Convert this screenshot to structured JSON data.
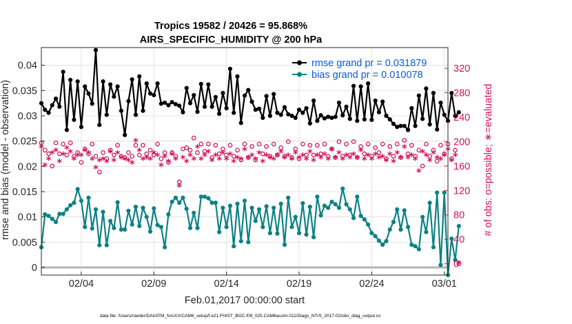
{
  "chart_data": {
    "type": "line",
    "title": "Tropics 19582 / 20426 = 95.868%",
    "subtitle": "AIRS_SPECIFIC_HUMIDITY @ 200 hPa",
    "xlabel": "Feb.01,2017 00:00:00 start",
    "ylabel_left": "rmse and bias (model - observation)",
    "ylabel_right": "# of obs: o=possible; ∗=evaluated",
    "x_ticks": [
      "02/04",
      "02/09",
      "02/14",
      "02/19",
      "02/24",
      "03/01"
    ],
    "x_tick_days": [
      3,
      8,
      13,
      18,
      23,
      28
    ],
    "xlim": [
      0.25,
      28.25
    ],
    "ylim_left": [
      -0.0015,
      0.0435
    ],
    "y_ticks_left": [
      "0",
      "0.005",
      "0.01",
      "0.015",
      "0.02",
      "0.025",
      "0.03",
      "0.035",
      "0.04"
    ],
    "y_tick_values_left": [
      0,
      0.005,
      0.01,
      0.015,
      0.02,
      0.025,
      0.03,
      0.035,
      0.04
    ],
    "ylim_right": [
      -18.5,
      354
    ],
    "y_ticks_right": [
      "0",
      "40",
      "80",
      "120",
      "160",
      "200",
      "240",
      "280",
      "320"
    ],
    "y_tick_values_right": [
      0,
      40,
      80,
      120,
      160,
      200,
      240,
      280,
      320
    ],
    "grid": true,
    "legend_position": "top-right",
    "x_start_day": 0.25,
    "x_step_days": 0.25,
    "series": [
      {
        "name": "rmse grand pr = 0.031879",
        "axis": "left",
        "color": "#000000",
        "marker": "dot",
        "values": [
          0.0325,
          0.0312,
          0.0306,
          0.0321,
          0.0334,
          0.0318,
          0.0387,
          0.0272,
          0.0371,
          0.0292,
          0.0368,
          0.0278,
          0.0358,
          0.0344,
          0.0324,
          0.043,
          0.0282,
          0.0368,
          0.0302,
          0.0362,
          0.0338,
          0.0358,
          0.031,
          0.0262,
          0.0329,
          0.0372,
          0.0302,
          0.0378,
          0.031,
          0.0364,
          0.0344,
          0.0341,
          0.0364,
          0.0324,
          0.0326,
          0.0321,
          0.0327,
          0.0323,
          0.032,
          0.0307,
          0.0355,
          0.0325,
          0.0341,
          0.0308,
          0.0363,
          0.0318,
          0.0362,
          0.0318,
          0.0337,
          0.0304,
          0.0345,
          0.0315,
          0.0393,
          0.0306,
          0.0378,
          0.0286,
          0.034,
          0.0351,
          0.0328,
          0.0312,
          0.0314,
          0.0296,
          0.0339,
          0.03,
          0.0343,
          0.0306,
          0.0302,
          0.0317,
          0.0303,
          0.03,
          0.0296,
          0.0312,
          0.0306,
          0.0315,
          0.0285,
          0.033,
          0.029,
          0.0301,
          0.0295,
          0.0298,
          0.0296,
          0.0298,
          0.0326,
          0.0301,
          0.0318,
          0.0294,
          0.0359,
          0.029,
          0.0358,
          0.0293,
          0.0364,
          0.0292,
          0.033,
          0.0307,
          0.0328,
          0.03,
          0.0293,
          0.0284,
          0.0278,
          0.028,
          0.028,
          0.0272,
          0.0315,
          0.028,
          0.034,
          0.0294,
          0.0354,
          0.0283,
          0.0345,
          0.0273,
          0.0326,
          0.0302,
          0.029,
          0.0345,
          0.03,
          0.0307
        ]
      },
      {
        "name": "bias grand pr = 0.010078",
        "axis": "left",
        "color": "#0b8284",
        "marker": "dot",
        "values": [
          0.004,
          0.0105,
          0.0102,
          0.0096,
          0.009,
          0.0106,
          0.0106,
          0.0115,
          0.0123,
          0.0128,
          0.0155,
          0.0132,
          0.008,
          0.0138,
          0.0077,
          0.0115,
          0.0044,
          0.011,
          0.0044,
          0.0092,
          0.0078,
          0.0129,
          0.0075,
          0.0075,
          0.0112,
          0.0085,
          0.012,
          0.0082,
          0.0118,
          0.01,
          0.0071,
          0.0117,
          0.0084,
          0.008,
          0.004,
          0.0105,
          0.013,
          0.0138,
          0.0128,
          0.0138,
          0.0116,
          0.0078,
          0.0108,
          0.0078,
          0.014,
          0.014,
          0.0137,
          0.0128,
          0.0128,
          0.007,
          0.0118,
          0.008,
          0.0122,
          0.0042,
          0.0126,
          0.0052,
          0.0132,
          0.005,
          0.0118,
          0.0092,
          0.0115,
          0.008,
          0.0121,
          0.0068,
          0.0118,
          0.0067,
          0.0126,
          0.0045,
          0.0138,
          0.008,
          0.01,
          0.0068,
          0.0127,
          0.0065,
          0.012,
          0.006,
          0.014,
          0.0103,
          0.0122,
          0.0118,
          0.013,
          0.0125,
          0.0118,
          0.0156,
          0.0125,
          0.0115,
          0.0098,
          0.014,
          0.0102,
          0.0095,
          0.0085,
          0.0068,
          0.0062,
          0.0053,
          0.0045,
          0.0052,
          0.0075,
          0.009,
          0.0115,
          0.0075,
          0.0113,
          0.008,
          0.0045,
          0.0042,
          0.0036,
          0.01,
          0.007,
          0.0128,
          0.004,
          0.0148,
          0.0005,
          0.0148,
          -0.0015,
          0.0057,
          0.0015,
          0.0082
        ]
      }
    ],
    "obs_possible": {
      "name": "# obs possible (o)",
      "axis": "right",
      "color": "#d0135c",
      "values": [
        198,
        186,
        180,
        160,
        198,
        180,
        196,
        178,
        198,
        176,
        182,
        166,
        188,
        180,
        196,
        176,
        150,
        182,
        172,
        186,
        178,
        194,
        176,
        174,
        182,
        176,
        194,
        178,
        194,
        180,
        186,
        178,
        196,
        172,
        182,
        166,
        182,
        176,
        134,
        188,
        190,
        186,
        206,
        182,
        196,
        184,
        196,
        174,
        194,
        180,
        188,
        178,
        194,
        176,
        186,
        170,
        196,
        174,
        192,
        170,
        196,
        180,
        192,
        176,
        196,
        178,
        190,
        176,
        200,
        174,
        188,
        172,
        196,
        178,
        194,
        178,
        194,
        180,
        196,
        176,
        188,
        174,
        200,
        176,
        196,
        178,
        200,
        174,
        192,
        180,
        196,
        176,
        190,
        182,
        196,
        172,
        192,
        176,
        196,
        174,
        202,
        180,
        194,
        176,
        186,
        160,
        196,
        176,
        186,
        168,
        194,
        180,
        196,
        172,
        186,
        0
      ]
    },
    "obs_evaluated": {
      "name": "# obs evaluated (*)",
      "axis": "right",
      "color": "#d0135c",
      "values": [
        190,
        160,
        170,
        180,
        184,
        166,
        178,
        188,
        182,
        170,
        176,
        176,
        184,
        180,
        170,
        156,
        168,
        170,
        166,
        182,
        168,
        180,
        172,
        170,
        168,
        164,
        200,
        184,
        170,
        172,
        170,
        180,
        176,
        160,
        174,
        166,
        178,
        170,
        126,
        172,
        166,
        176,
        170,
        190,
        170,
        176,
        182,
        168,
        176,
        170,
        180,
        170,
        178,
        166,
        172,
        170,
        186,
        172,
        176,
        170,
        180,
        166,
        176,
        172,
        170,
        176,
        182,
        172,
        176,
        170,
        180,
        172,
        176,
        170,
        182,
        168,
        176,
        172,
        178,
        170,
        186,
        172,
        180,
        170,
        176,
        172,
        178,
        172,
        184,
        170,
        176,
        170,
        178,
        172,
        174,
        168,
        178,
        166,
        180,
        172,
        190,
        172,
        176,
        170,
        150,
        182,
        176,
        168,
        180,
        172,
        170,
        176,
        186,
        168,
        176,
        0
      ]
    }
  },
  "footer": {
    "datafile": "data file: /Users/raeder/DAI/ATM_forcXX/CAM6_setup/f.e21.FHIST_BGC.f09_025.CAM6assim.011/Diags_NTrS_2017-02/obs_diag_output.nc"
  }
}
